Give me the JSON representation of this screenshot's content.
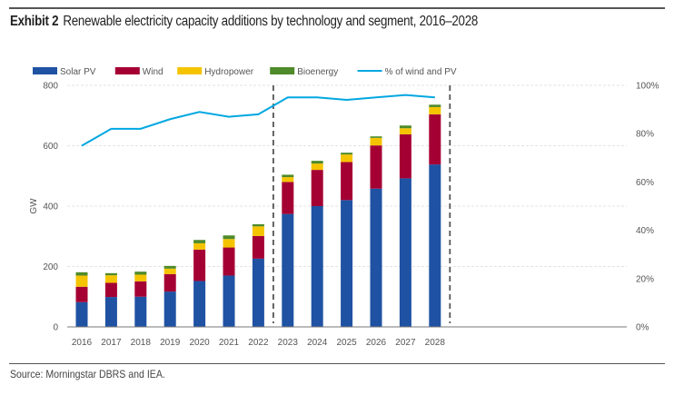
{
  "header": {
    "exhibit": "Exhibit 2",
    "title": "Renewable electricity capacity additions by technology and segment, 2016–2028"
  },
  "footer": {
    "source": "Source: Morningstar DBRS and IEA."
  },
  "chart_data": {
    "type": "bar",
    "stacked": true,
    "categories": [
      "2016",
      "2017",
      "2018",
      "2019",
      "2020",
      "2021",
      "2022",
      "2023",
      "2024",
      "2025",
      "2026",
      "2027",
      "2028"
    ],
    "series": [
      {
        "name": "Solar PV",
        "color": "#1f52a3",
        "values": [
          82,
          99,
          100,
          117,
          152,
          170,
          226,
          374,
          400,
          420,
          458,
          492,
          538
        ]
      },
      {
        "name": "Wind",
        "color": "#a50034",
        "values": [
          51,
          47,
          51,
          58,
          104,
          93,
          75,
          106,
          120,
          126,
          143,
          146,
          166
        ]
      },
      {
        "name": "Hydropower",
        "color": "#f5c400",
        "values": [
          37,
          25,
          22,
          18,
          21,
          28,
          32,
          16,
          21,
          25,
          25,
          20,
          24
        ]
      },
      {
        "name": "Bioenergy",
        "color": "#4f8a2b",
        "values": [
          11,
          7,
          10,
          9,
          11,
          12,
          7,
          8,
          9,
          6,
          5,
          9,
          8
        ]
      }
    ],
    "line_series": {
      "name": "% of wind and PV",
      "color": "#00a7e1",
      "axis": "right",
      "values": [
        75,
        82,
        82,
        86,
        89,
        87,
        88,
        95,
        95,
        94,
        95,
        96,
        95
      ]
    },
    "ylabel": "GW",
    "ylim": [
      0,
      800
    ],
    "yticks": [
      0,
      200,
      400,
      600,
      800
    ],
    "y2lim": [
      0,
      100
    ],
    "y2ticks": [
      "0%",
      "20%",
      "40%",
      "60%",
      "80%",
      "100%"
    ],
    "dividers_after": [
      "2022",
      "2028"
    ],
    "grid": true,
    "legend_position": "top-left"
  }
}
